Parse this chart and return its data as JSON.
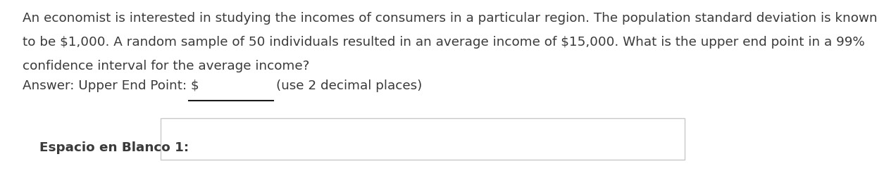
{
  "background_color": "#ffffff",
  "para_line1": "An economist is interested in studying the incomes of consumers in a particular region. The population standard deviation is known",
  "para_line2": "to be $1,000. A random sample of 50 individuals resulted in an average income of $15,000. What is the upper end point in a 99%",
  "para_line3": "confidence interval for the average income?",
  "answer_prefix": "Answer: Upper End Point: $",
  "answer_suffix": "(use 2 decimal places)",
  "blank_label": "Espacio en Blanco 1:",
  "font_size_para": 13.2,
  "font_size_answer": 13.2,
  "font_size_blank": 13.2,
  "text_color": "#3a3a3a",
  "box_edge_color": "#c8c8c8",
  "box_face_color": "#ffffff",
  "underline_color": "#1a1a1a"
}
